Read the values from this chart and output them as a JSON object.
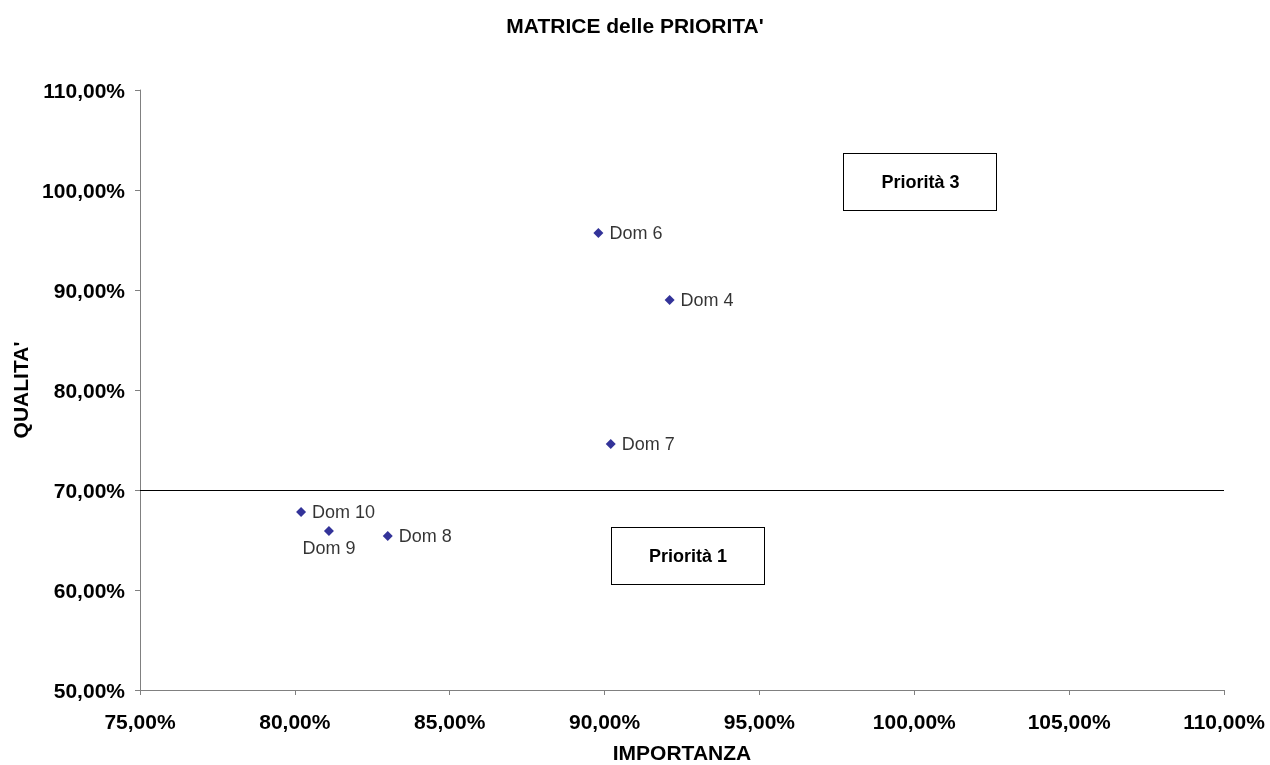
{
  "chart_data": {
    "type": "scatter",
    "title": "MATRICE delle PRIORITA'",
    "xlabel": "IMPORTANZA",
    "ylabel": "QUALITA'",
    "series": [
      {
        "name": "Dom 6",
        "color": "#000080",
        "x": [
          89.8
        ],
        "values": [
          95.7
        ]
      },
      {
        "name": "Dom 4",
        "color": "#000080",
        "x": [
          92.1
        ],
        "values": [
          89.0
        ]
      },
      {
        "name": "Dom 7",
        "color": "#000080",
        "x": [
          90.2
        ],
        "values": [
          74.6
        ]
      },
      {
        "name": "Dom 10",
        "color": "#000080",
        "x": [
          80.2
        ],
        "values": [
          67.8
        ]
      },
      {
        "name": "Dom 9",
        "color": "#000080",
        "x": [
          81.1
        ],
        "values": [
          65.9
        ]
      },
      {
        "name": "Dom 8",
        "color": "#000080",
        "x": [
          83.0
        ],
        "values": [
          65.4
        ]
      }
    ],
    "xlim": [
      75,
      110
    ],
    "xticks": [
      {
        "value": 75,
        "label": "75,00%"
      },
      {
        "value": 80,
        "label": "80,00%"
      },
      {
        "value": 85,
        "label": "85,00%"
      },
      {
        "value": 90,
        "label": "90,00%"
      },
      {
        "value": 95,
        "label": "95,00%"
      },
      {
        "value": 100,
        "label": "100,00%"
      },
      {
        "value": 105,
        "label": "105,00%"
      },
      {
        "value": 110,
        "label": "110,00%"
      }
    ],
    "ylim": [
      50,
      110
    ],
    "yticks": [
      {
        "value": 50,
        "label": "50,00%"
      },
      {
        "value": 60,
        "label": "60,00%"
      },
      {
        "value": 70,
        "label": "70,00%"
      },
      {
        "value": 80,
        "label": "80,00%"
      },
      {
        "value": 90,
        "label": "90,00%"
      },
      {
        "value": 100,
        "label": "100,00%"
      },
      {
        "value": 110,
        "label": "110,00%"
      }
    ],
    "ref_lines": [
      {
        "axis": "y",
        "value": 70,
        "color": "#000000"
      }
    ],
    "annotations": [
      "Priorità 3",
      "Priorità 1"
    ],
    "marker": "diamond",
    "grid": false,
    "legend": false
  }
}
